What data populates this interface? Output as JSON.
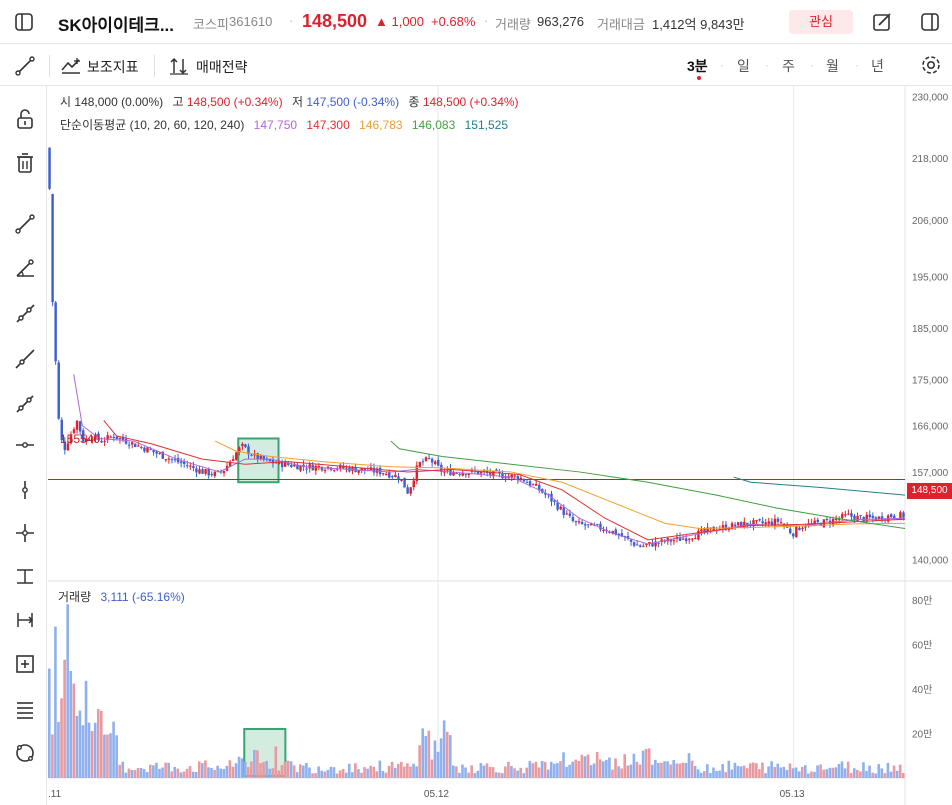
{
  "header": {
    "name": "SK아이이테크...",
    "market": "코스피",
    "code": "361610",
    "sep": "·",
    "price": "148,500",
    "change": "▲ 1,000",
    "change_pct": "+0.68%",
    "volume_label": "거래량",
    "volume_value": "963,276",
    "amount_label": "거래대금",
    "amount_value": "1,412억 9,843만",
    "favorite_label": "관심"
  },
  "toolbar": {
    "indicators_label": "보조지표",
    "strategy_label": "매매전략",
    "timeframes": [
      "3분",
      "일",
      "주",
      "월",
      "년"
    ],
    "active_timeframe": "3분"
  },
  "legend": {
    "open_label": "시",
    "open_value": "148,000 (0.00%)",
    "high_label": "고",
    "high_value": "148,500 (+0.34%)",
    "low_label": "저",
    "low_value": "147,500 (-0.34%)",
    "close_label": "종",
    "close_value": "148,500 (+0.34%)",
    "ma_label": "단순이동평균 (10, 20, 60, 120, 240)",
    "ma_values": [
      "147,750",
      "147,300",
      "146,783",
      "146,083",
      "151,525"
    ],
    "ma_colors": [
      "#b266d6",
      "#e03030",
      "#f0a030",
      "#40a040",
      "#20808a"
    ],
    "volume_label": "거래량",
    "volume_value": "3,111 (-65.16%)"
  },
  "price_line": {
    "label": "155540",
    "value": 155540
  },
  "current_price_tag": "148,500",
  "colors": {
    "up": "#e0202c",
    "down": "#3d5fd0",
    "vol_up": "#e89aa0",
    "vol_down": "#8fb0ee",
    "highlight": "#3aa374"
  },
  "chart_data": {
    "type": "candlestick",
    "price_axis": {
      "ticks": [
        230000,
        218000,
        206000,
        195000,
        185000,
        175000,
        166000,
        157000,
        148500,
        140000
      ],
      "labels": [
        "230,000",
        "218,000",
        "206,000",
        "195,000",
        "185,000",
        "175,000",
        "166,000",
        "157,000",
        "148,500",
        "140,000"
      ],
      "range": [
        136000,
        232000
      ]
    },
    "volume_axis": {
      "labels": [
        "80만",
        "60만",
        "40만",
        "20만"
      ],
      "values": [
        800000,
        600000,
        400000,
        200000
      ],
      "range": [
        0,
        880000
      ]
    },
    "x_labels": [
      ".11",
      "05.12",
      "05.13"
    ],
    "x_label_positions": [
      0,
      0.455,
      0.87
    ],
    "close_path": [
      [
        0.0,
        218000
      ],
      [
        0.004,
        190000
      ],
      [
        0.01,
        168000
      ],
      [
        0.016,
        161000
      ],
      [
        0.024,
        164000
      ],
      [
        0.032,
        167000
      ],
      [
        0.04,
        163000
      ],
      [
        0.05,
        164000
      ],
      [
        0.06,
        163000
      ],
      [
        0.075,
        164000
      ],
      [
        0.09,
        163000
      ],
      [
        0.105,
        162000
      ],
      [
        0.12,
        161000
      ],
      [
        0.135,
        160000
      ],
      [
        0.15,
        159000
      ],
      [
        0.165,
        158000
      ],
      [
        0.18,
        157000
      ],
      [
        0.195,
        156500
      ],
      [
        0.205,
        157500
      ],
      [
        0.215,
        160000
      ],
      [
        0.225,
        162000
      ],
      [
        0.24,
        160000
      ],
      [
        0.255,
        159000
      ],
      [
        0.275,
        158500
      ],
      [
        0.3,
        158000
      ],
      [
        0.33,
        158000
      ],
      [
        0.36,
        157500
      ],
      [
        0.39,
        157000
      ],
      [
        0.41,
        156000
      ],
      [
        0.42,
        153000
      ],
      [
        0.432,
        158500
      ],
      [
        0.445,
        159500
      ],
      [
        0.46,
        157000
      ],
      [
        0.475,
        157000
      ],
      [
        0.5,
        157000
      ],
      [
        0.52,
        156500
      ],
      [
        0.55,
        156000
      ],
      [
        0.57,
        154000
      ],
      [
        0.585,
        152000
      ],
      [
        0.6,
        149500
      ],
      [
        0.615,
        147000
      ],
      [
        0.63,
        146500
      ],
      [
        0.65,
        146000
      ],
      [
        0.665,
        145000
      ],
      [
        0.68,
        143500
      ],
      [
        0.69,
        142500
      ],
      [
        0.705,
        143000
      ],
      [
        0.72,
        143500
      ],
      [
        0.74,
        144000
      ],
      [
        0.76,
        145000
      ],
      [
        0.78,
        146000
      ],
      [
        0.8,
        146500
      ],
      [
        0.82,
        147000
      ],
      [
        0.84,
        147000
      ],
      [
        0.855,
        147500
      ],
      [
        0.87,
        145000
      ],
      [
        0.88,
        146500
      ],
      [
        0.9,
        147000
      ],
      [
        0.915,
        147500
      ],
      [
        0.935,
        148500
      ],
      [
        0.95,
        148000
      ],
      [
        0.97,
        148000
      ],
      [
        0.985,
        148500
      ],
      [
        1.0,
        148500
      ]
    ],
    "ma_series": [
      {
        "color": "#b266d6",
        "points": [
          [
            0.03,
            176000
          ],
          [
            0.04,
            166000
          ],
          [
            0.06,
            163500
          ],
          [
            0.1,
            163000
          ],
          [
            0.15,
            159500
          ],
          [
            0.2,
            157000
          ],
          [
            0.23,
            159500
          ],
          [
            0.26,
            159500
          ],
          [
            0.3,
            158000
          ],
          [
            0.4,
            157000
          ],
          [
            0.43,
            157500
          ],
          [
            0.47,
            157000
          ],
          [
            0.54,
            156000
          ],
          [
            0.58,
            153000
          ],
          [
            0.62,
            148000
          ],
          [
            0.66,
            145000
          ],
          [
            0.7,
            143000
          ],
          [
            0.76,
            145000
          ],
          [
            0.82,
            146800
          ],
          [
            0.88,
            146500
          ],
          [
            0.94,
            147700
          ],
          [
            1.0,
            148000
          ]
        ]
      },
      {
        "color": "#e03030",
        "points": [
          [
            0.065,
            167000
          ],
          [
            0.08,
            164000
          ],
          [
            0.12,
            162500
          ],
          [
            0.18,
            159500
          ],
          [
            0.23,
            158500
          ],
          [
            0.28,
            159000
          ],
          [
            0.35,
            158000
          ],
          [
            0.42,
            157000
          ],
          [
            0.47,
            157500
          ],
          [
            0.55,
            156500
          ],
          [
            0.6,
            153500
          ],
          [
            0.65,
            148000
          ],
          [
            0.7,
            143800
          ],
          [
            0.76,
            145200
          ],
          [
            0.82,
            146600
          ],
          [
            0.88,
            146800
          ],
          [
            0.95,
            147400
          ],
          [
            1.0,
            147800
          ]
        ]
      },
      {
        "color": "#f0a030",
        "points": [
          [
            0.195,
            163000
          ],
          [
            0.22,
            161000
          ],
          [
            0.26,
            160000
          ],
          [
            0.32,
            159000
          ],
          [
            0.4,
            158000
          ],
          [
            0.46,
            157800
          ],
          [
            0.54,
            157000
          ],
          [
            0.6,
            155000
          ],
          [
            0.66,
            151000
          ],
          [
            0.72,
            147000
          ],
          [
            0.76,
            146000
          ],
          [
            0.82,
            146200
          ],
          [
            0.88,
            146500
          ],
          [
            0.94,
            146900
          ],
          [
            1.0,
            147000
          ]
        ]
      },
      {
        "color": "#40a040",
        "points": [
          [
            0.4,
            163000
          ],
          [
            0.41,
            161500
          ],
          [
            0.46,
            160000
          ],
          [
            0.54,
            158500
          ],
          [
            0.62,
            157000
          ],
          [
            0.7,
            155000
          ],
          [
            0.78,
            152500
          ],
          [
            0.85,
            150000
          ],
          [
            0.92,
            148000
          ],
          [
            1.0,
            146000
          ]
        ]
      },
      {
        "color": "#20808a",
        "points": [
          [
            0.8,
            156000
          ],
          [
            0.82,
            155000
          ],
          [
            0.9,
            154000
          ],
          [
            1.0,
            152500
          ]
        ]
      }
    ],
    "highlight_boxes": [
      {
        "x0": 0.222,
        "x1": 0.269,
        "y_top": 163500,
        "y_bottom": 155000
      }
    ],
    "volume_highlight": {
      "x0": 0.229,
      "x1": 0.277,
      "top": 220000
    }
  }
}
